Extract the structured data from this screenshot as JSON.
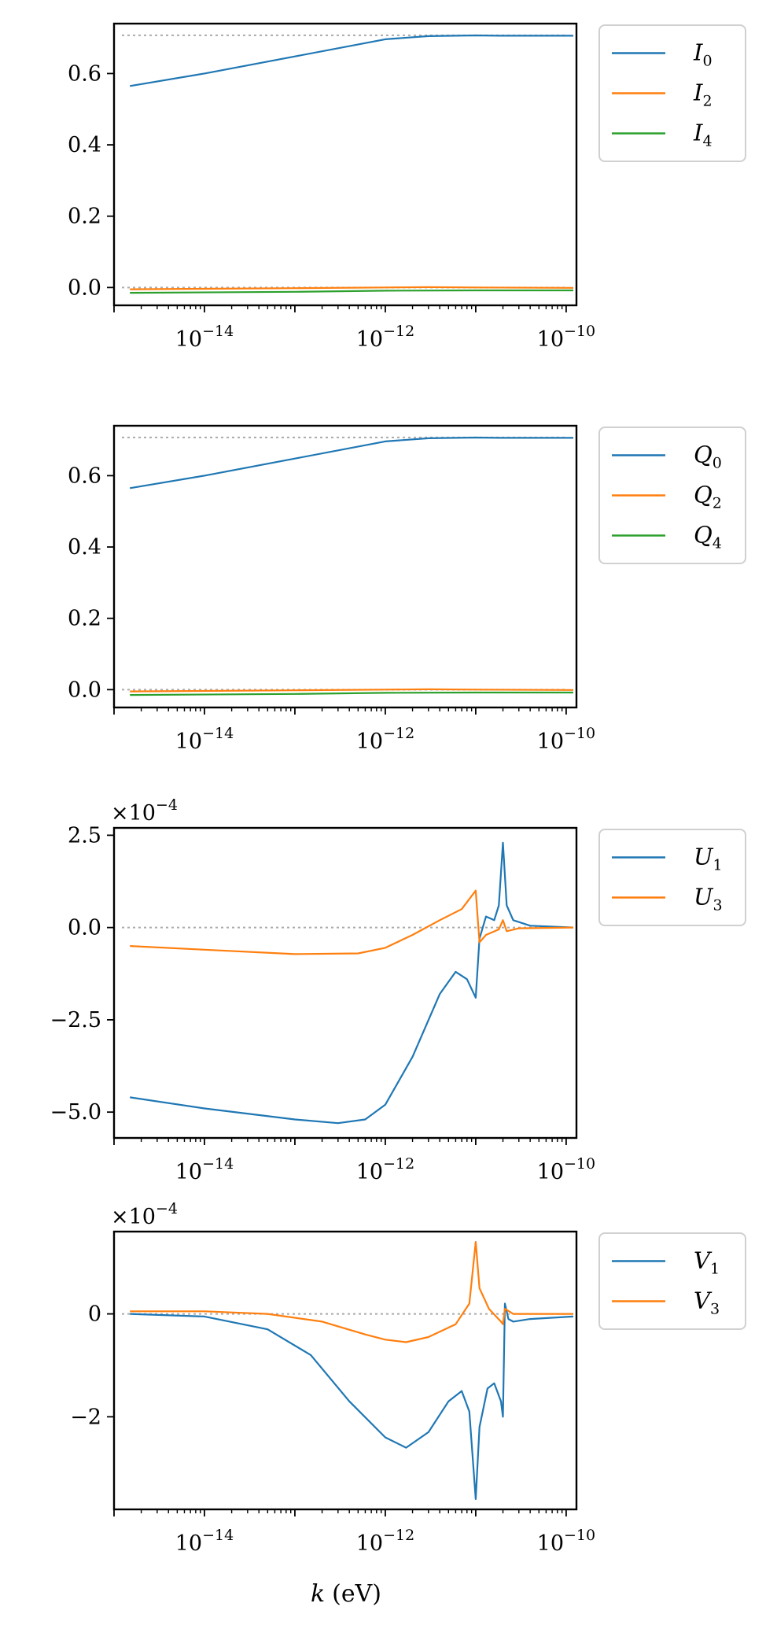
{
  "figure": {
    "xlabel": "k (eV)",
    "xlabel_var": "k",
    "xlabel_unit": "(eV)"
  },
  "chart_data": [
    {
      "type": "line",
      "x_scale": "log",
      "xlim": [
        1e-15,
        1.3e-10
      ],
      "ylim": [
        -0.05,
        0.74
      ],
      "x_ticks": [
        {
          "value": 1e-14,
          "base": "10",
          "exp": "−14"
        },
        {
          "value": 1e-12,
          "base": "10",
          "exp": "−12"
        },
        {
          "value": 1e-10,
          "base": "10",
          "exp": "−10"
        }
      ],
      "y_ticks": [
        {
          "value": 0.0,
          "label": "0.0"
        },
        {
          "value": 0.2,
          "label": "0.2"
        },
        {
          "value": 0.4,
          "label": "0.4"
        },
        {
          "value": 0.6,
          "label": "0.6"
        }
      ],
      "y_offset": "",
      "ref_lines": [
        0.7071,
        0.0
      ],
      "legend_loc": "outside upper right",
      "series": [
        {
          "name": "I",
          "sub": "0",
          "color": "#1f77b4",
          "points": [
            [
              1.5e-15,
              0.565
            ],
            [
              1e-14,
              0.6
            ],
            [
              1e-13,
              0.648
            ],
            [
              1e-12,
              0.696
            ],
            [
              3e-12,
              0.705
            ],
            [
              1e-11,
              0.707
            ],
            [
              2e-11,
              0.706
            ],
            [
              1.2e-10,
              0.706
            ]
          ]
        },
        {
          "name": "I",
          "sub": "2",
          "color": "#ff7f0e",
          "points": [
            [
              1.5e-15,
              -0.005
            ],
            [
              1e-13,
              -0.002
            ],
            [
              1e-12,
              0.0
            ],
            [
              3e-12,
              0.001
            ],
            [
              1e-11,
              0.0
            ],
            [
              1.2e-10,
              -0.001
            ]
          ]
        },
        {
          "name": "I",
          "sub": "4",
          "color": "#2ca02c",
          "points": [
            [
              1.5e-15,
              -0.015
            ],
            [
              1e-13,
              -0.012
            ],
            [
              1e-12,
              -0.009
            ],
            [
              1e-11,
              -0.008
            ],
            [
              1.2e-10,
              -0.008
            ]
          ]
        }
      ]
    },
    {
      "type": "line",
      "x_scale": "log",
      "xlim": [
        1e-15,
        1.3e-10
      ],
      "ylim": [
        -0.05,
        0.74
      ],
      "x_ticks": [
        {
          "value": 1e-14,
          "base": "10",
          "exp": "−14"
        },
        {
          "value": 1e-12,
          "base": "10",
          "exp": "−12"
        },
        {
          "value": 1e-10,
          "base": "10",
          "exp": "−10"
        }
      ],
      "y_ticks": [
        {
          "value": 0.0,
          "label": "0.0"
        },
        {
          "value": 0.2,
          "label": "0.2"
        },
        {
          "value": 0.4,
          "label": "0.4"
        },
        {
          "value": 0.6,
          "label": "0.6"
        }
      ],
      "y_offset": "",
      "ref_lines": [
        0.7071,
        0.0
      ],
      "legend_loc": "outside upper right",
      "series": [
        {
          "name": "Q",
          "sub": "0",
          "color": "#1f77b4",
          "points": [
            [
              1.5e-15,
              0.565
            ],
            [
              1e-14,
              0.6
            ],
            [
              1e-13,
              0.648
            ],
            [
              1e-12,
              0.696
            ],
            [
              3e-12,
              0.705
            ],
            [
              1e-11,
              0.707
            ],
            [
              2e-11,
              0.706
            ],
            [
              1.2e-10,
              0.706
            ]
          ]
        },
        {
          "name": "Q",
          "sub": "2",
          "color": "#ff7f0e",
          "points": [
            [
              1.5e-15,
              -0.005
            ],
            [
              1e-13,
              -0.002
            ],
            [
              1e-12,
              0.0
            ],
            [
              3e-12,
              0.001
            ],
            [
              1e-11,
              0.0
            ],
            [
              1.2e-10,
              -0.001
            ]
          ]
        },
        {
          "name": "Q",
          "sub": "4",
          "color": "#2ca02c",
          "points": [
            [
              1.5e-15,
              -0.015
            ],
            [
              1e-13,
              -0.012
            ],
            [
              1e-12,
              -0.009
            ],
            [
              1e-11,
              -0.008
            ],
            [
              1.2e-10,
              -0.008
            ]
          ]
        }
      ]
    },
    {
      "type": "line",
      "x_scale": "log",
      "xlim": [
        1e-15,
        1.3e-10
      ],
      "ylim": [
        -5.7,
        2.7
      ],
      "x_ticks": [
        {
          "value": 1e-14,
          "base": "10",
          "exp": "−14"
        },
        {
          "value": 1e-12,
          "base": "10",
          "exp": "−12"
        },
        {
          "value": 1e-10,
          "base": "10",
          "exp": "−10"
        }
      ],
      "y_ticks": [
        {
          "value": -5.0,
          "label": "−5.0"
        },
        {
          "value": -2.5,
          "label": "−2.5"
        },
        {
          "value": 0.0,
          "label": "0.0"
        },
        {
          "value": 2.5,
          "label": "2.5"
        }
      ],
      "y_offset": "×10",
      "y_offset_exp": "−4",
      "ref_lines": [
        0.0
      ],
      "legend_loc": "outside upper right",
      "series": [
        {
          "name": "U",
          "sub": "1",
          "color": "#1f77b4",
          "points": [
            [
              1.5e-15,
              -4.6
            ],
            [
              1e-14,
              -4.9
            ],
            [
              1e-13,
              -5.2
            ],
            [
              3e-13,
              -5.3
            ],
            [
              6e-13,
              -5.2
            ],
            [
              1e-12,
              -4.8
            ],
            [
              2e-12,
              -3.5
            ],
            [
              4e-12,
              -1.8
            ],
            [
              6e-12,
              -1.2
            ],
            [
              8e-12,
              -1.4
            ],
            [
              1e-11,
              -1.9
            ],
            [
              1.1e-11,
              -0.3
            ],
            [
              1.3e-11,
              0.3
            ],
            [
              1.6e-11,
              0.2
            ],
            [
              1.8e-11,
              0.6
            ],
            [
              2e-11,
              2.3
            ],
            [
              2.2e-11,
              0.6
            ],
            [
              2.6e-11,
              0.2
            ],
            [
              4e-11,
              0.05
            ],
            [
              1.2e-10,
              0.0
            ]
          ]
        },
        {
          "name": "U",
          "sub": "3",
          "color": "#ff7f0e",
          "points": [
            [
              1.5e-15,
              -0.5
            ],
            [
              1e-14,
              -0.6
            ],
            [
              1e-13,
              -0.72
            ],
            [
              5e-13,
              -0.7
            ],
            [
              1e-12,
              -0.55
            ],
            [
              2e-12,
              -0.2
            ],
            [
              4e-12,
              0.2
            ],
            [
              7e-12,
              0.5
            ],
            [
              1e-11,
              1.0
            ],
            [
              1.1e-11,
              -0.4
            ],
            [
              1.3e-11,
              -0.2
            ],
            [
              1.8e-11,
              -0.05
            ],
            [
              2e-11,
              0.2
            ],
            [
              2.2e-11,
              -0.1
            ],
            [
              3e-11,
              -0.02
            ],
            [
              1.2e-10,
              0.0
            ]
          ]
        }
      ]
    },
    {
      "type": "line",
      "x_scale": "log",
      "xlim": [
        1e-15,
        1.3e-10
      ],
      "ylim": [
        -3.8,
        1.6
      ],
      "x_ticks": [
        {
          "value": 1e-14,
          "base": "10",
          "exp": "−14"
        },
        {
          "value": 1e-12,
          "base": "10",
          "exp": "−12"
        },
        {
          "value": 1e-10,
          "base": "10",
          "exp": "−10"
        }
      ],
      "y_ticks": [
        {
          "value": -2.0,
          "label": "−2"
        },
        {
          "value": 0.0,
          "label": "0"
        }
      ],
      "y_offset": "×10",
      "y_offset_exp": "−4",
      "ref_lines": [
        0.0
      ],
      "legend_loc": "outside upper right",
      "series": [
        {
          "name": "V",
          "sub": "1",
          "color": "#1f77b4",
          "points": [
            [
              1.5e-15,
              0.0
            ],
            [
              1e-14,
              -0.05
            ],
            [
              5e-14,
              -0.3
            ],
            [
              1.5e-13,
              -0.8
            ],
            [
              4e-13,
              -1.7
            ],
            [
              1e-12,
              -2.4
            ],
            [
              1.7e-12,
              -2.6
            ],
            [
              3e-12,
              -2.3
            ],
            [
              5e-12,
              -1.7
            ],
            [
              7e-12,
              -1.5
            ],
            [
              8.5e-12,
              -1.9
            ],
            [
              1e-11,
              -3.6
            ],
            [
              1.1e-11,
              -2.2
            ],
            [
              1.35e-11,
              -1.45
            ],
            [
              1.6e-11,
              -1.35
            ],
            [
              1.9e-11,
              -1.7
            ],
            [
              2e-11,
              -2.0
            ],
            [
              2.1e-11,
              0.2
            ],
            [
              2.3e-11,
              -0.1
            ],
            [
              2.6e-11,
              -0.15
            ],
            [
              4e-11,
              -0.1
            ],
            [
              1.2e-10,
              -0.05
            ]
          ]
        },
        {
          "name": "V",
          "sub": "3",
          "color": "#ff7f0e",
          "points": [
            [
              1.5e-15,
              0.05
            ],
            [
              1e-14,
              0.05
            ],
            [
              5e-14,
              0.0
            ],
            [
              2e-13,
              -0.15
            ],
            [
              6e-13,
              -0.4
            ],
            [
              1e-12,
              -0.5
            ],
            [
              1.7e-12,
              -0.55
            ],
            [
              3e-12,
              -0.45
            ],
            [
              6e-12,
              -0.2
            ],
            [
              8.5e-12,
              0.2
            ],
            [
              1e-11,
              1.4
            ],
            [
              1.1e-11,
              0.5
            ],
            [
              1.4e-11,
              0.1
            ],
            [
              1.9e-11,
              -0.15
            ],
            [
              2e-11,
              -0.2
            ],
            [
              2.1e-11,
              0.1
            ],
            [
              2.6e-11,
              0.0
            ],
            [
              1.2e-10,
              0.0
            ]
          ]
        }
      ]
    }
  ]
}
